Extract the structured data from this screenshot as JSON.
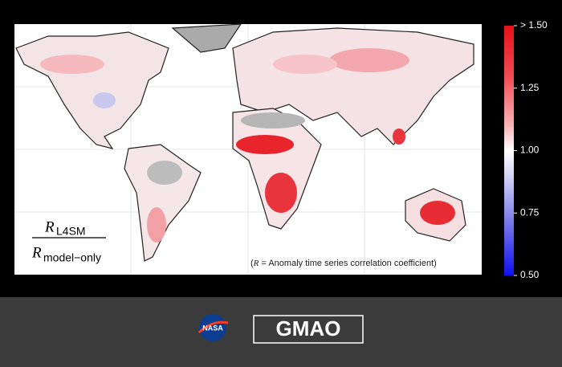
{
  "ratio": {
    "numerator": {
      "symbol": "R",
      "subscript": "L4SM"
    },
    "denominator": {
      "symbol": "R",
      "subscript": "model−only"
    }
  },
  "note": {
    "open": "(",
    "symbol": "R",
    "text": " = Anomaly time series correlation coefficient)"
  },
  "colorbar": {
    "range": [
      0.5,
      1.5
    ],
    "ticks": [
      {
        "value": 1.5,
        "label": "> 1.50"
      },
      1.25,
      {
        "value": 1,
        "label": "1.00"
      },
      0.75,
      {
        "value": 0.5,
        "label": "0.50"
      }
    ]
  },
  "footer": {
    "nasa": "NASA",
    "gmao": "GMAO"
  }
}
